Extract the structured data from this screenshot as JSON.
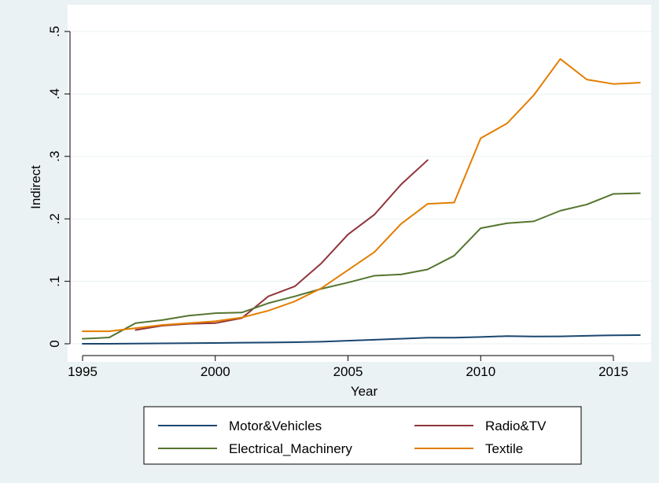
{
  "chart_data": {
    "type": "line",
    "title": "",
    "xlabel": "Year",
    "ylabel": "Indirect",
    "xlim": [
      1995,
      2016
    ],
    "ylim": [
      0,
      0.5
    ],
    "xticks": [
      1995,
      2000,
      2005,
      2010,
      2015
    ],
    "xtick_labels": [
      "1995",
      "2000",
      "2005",
      "2010",
      "2015"
    ],
    "yticks": [
      0,
      0.1,
      0.2,
      0.3,
      0.4,
      0.5
    ],
    "ytick_labels": [
      "0",
      ".1",
      ".2",
      ".3",
      ".4",
      ".5"
    ],
    "grid": "horizontal",
    "legend_position": "bottom",
    "series": [
      {
        "name": "Motor&Vehicles",
        "color": "#1a476f",
        "x": [
          1995,
          1996,
          1997,
          1998,
          1999,
          2000,
          2001,
          2002,
          2003,
          2004,
          2005,
          2006,
          2007,
          2008,
          2009,
          2010,
          2011,
          2012,
          2013,
          2014,
          2015,
          2016
        ],
        "y": [
          0.0,
          0.0,
          0.0003,
          0.0006,
          0.001,
          0.0013,
          0.0017,
          0.0021,
          0.0026,
          0.0033,
          0.0049,
          0.0065,
          0.0081,
          0.0098,
          0.0097,
          0.0108,
          0.0123,
          0.0117,
          0.0118,
          0.0128,
          0.0136,
          0.0138
        ]
      },
      {
        "name": "Radio&TV",
        "color": "#90353b",
        "x": [
          1997,
          1998,
          1999,
          2000,
          2001,
          2002,
          2003,
          2004,
          2005,
          2006,
          2007,
          2008
        ],
        "y": [
          0.022,
          0.029,
          0.032,
          0.033,
          0.041,
          0.076,
          0.092,
          0.129,
          0.175,
          0.207,
          0.255,
          0.294
        ]
      },
      {
        "name": "Electrical_Machinery",
        "color": "#55752f",
        "x": [
          1995,
          1996,
          1997,
          1998,
          1999,
          2000,
          2001,
          2002,
          2003,
          2004,
          2005,
          2006,
          2007,
          2008,
          2009,
          2010,
          2011,
          2012,
          2013,
          2014,
          2015,
          2016
        ],
        "y": [
          0.008,
          0.01,
          0.033,
          0.038,
          0.045,
          0.049,
          0.05,
          0.065,
          0.076,
          0.088,
          0.098,
          0.109,
          0.111,
          0.119,
          0.141,
          0.185,
          0.193,
          0.196,
          0.213,
          0.223,
          0.24,
          0.241
        ]
      },
      {
        "name": "Textile",
        "color": "#e37e00",
        "x": [
          1995,
          1996,
          1997,
          1998,
          1999,
          2000,
          2001,
          2002,
          2003,
          2004,
          2005,
          2006,
          2007,
          2008,
          2009,
          2010,
          2011,
          2012,
          2013,
          2014,
          2015,
          2016
        ],
        "y": [
          0.02,
          0.02,
          0.025,
          0.03,
          0.033,
          0.036,
          0.042,
          0.053,
          0.068,
          0.089,
          0.118,
          0.147,
          0.192,
          0.224,
          0.226,
          0.329,
          0.353,
          0.398,
          0.456,
          0.423,
          0.416,
          0.418
        ]
      }
    ]
  }
}
